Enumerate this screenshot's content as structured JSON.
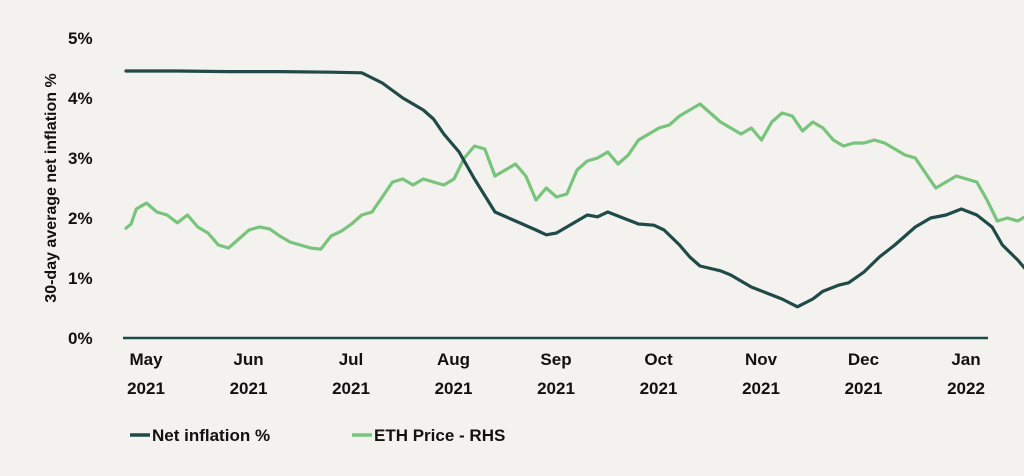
{
  "chart_data": {
    "type": "line",
    "title": "",
    "ylabel": "30-day average net inflation %",
    "xlabel": "",
    "ylim": [
      0,
      5
    ],
    "y_ticks": [
      "0%",
      "1%",
      "2%",
      "3%",
      "4%",
      "5%"
    ],
    "x_range": [
      0,
      8.6
    ],
    "x_ticks": [
      {
        "x": 0,
        "month": "May",
        "year": "2021"
      },
      {
        "x": 1,
        "month": "Jun",
        "year": "2021"
      },
      {
        "x": 2,
        "month": "Jul",
        "year": "2021"
      },
      {
        "x": 3,
        "month": "Aug",
        "year": "2021"
      },
      {
        "x": 4,
        "month": "Sep",
        "year": "2021"
      },
      {
        "x": 5,
        "month": "Oct",
        "year": "2021"
      },
      {
        "x": 6,
        "month": "Nov",
        "year": "2021"
      },
      {
        "x": 7,
        "month": "Dec",
        "year": "2021"
      },
      {
        "x": 8,
        "month": "Jan",
        "year": "2022"
      }
    ],
    "series": [
      {
        "name": "Net inflation %",
        "color": "#1f4a48",
        "points": [
          [
            0,
            4.45
          ],
          [
            0.5,
            4.45
          ],
          [
            1,
            4.44
          ],
          [
            1.5,
            4.44
          ],
          [
            2,
            4.43
          ],
          [
            2.3,
            4.42
          ],
          [
            2.5,
            4.25
          ],
          [
            2.7,
            4.0
          ],
          [
            2.9,
            3.8
          ],
          [
            3.0,
            3.65
          ],
          [
            3.1,
            3.4
          ],
          [
            3.25,
            3.1
          ],
          [
            3.4,
            2.65
          ],
          [
            3.6,
            2.1
          ],
          [
            3.8,
            1.95
          ],
          [
            4.0,
            1.8
          ],
          [
            4.1,
            1.72
          ],
          [
            4.2,
            1.75
          ],
          [
            4.35,
            1.9
          ],
          [
            4.5,
            2.05
          ],
          [
            4.6,
            2.02
          ],
          [
            4.7,
            2.1
          ],
          [
            4.85,
            2.0
          ],
          [
            5.0,
            1.9
          ],
          [
            5.15,
            1.88
          ],
          [
            5.25,
            1.8
          ],
          [
            5.4,
            1.55
          ],
          [
            5.5,
            1.35
          ],
          [
            5.6,
            1.2
          ],
          [
            5.8,
            1.12
          ],
          [
            5.9,
            1.05
          ],
          [
            6.0,
            0.95
          ],
          [
            6.1,
            0.85
          ],
          [
            6.25,
            0.75
          ],
          [
            6.4,
            0.65
          ],
          [
            6.55,
            0.52
          ],
          [
            6.7,
            0.65
          ],
          [
            6.8,
            0.78
          ],
          [
            6.95,
            0.88
          ],
          [
            7.05,
            0.92
          ],
          [
            7.2,
            1.1
          ],
          [
            7.35,
            1.35
          ],
          [
            7.5,
            1.55
          ],
          [
            7.7,
            1.85
          ],
          [
            7.85,
            2.0
          ],
          [
            8.0,
            2.05
          ],
          [
            8.15,
            2.15
          ],
          [
            8.3,
            2.05
          ],
          [
            8.45,
            1.85
          ],
          [
            8.55,
            1.55
          ],
          [
            8.7,
            1.3
          ],
          [
            8.85,
            1.0
          ],
          [
            9.0,
            0.75
          ],
          [
            9.1,
            0.6
          ],
          [
            9.2,
            0.58
          ]
        ]
      },
      {
        "name": "ETH Price - RHS",
        "color": "#78c47c",
        "points": [
          [
            0,
            1.83
          ],
          [
            0.05,
            1.9
          ],
          [
            0.1,
            2.15
          ],
          [
            0.2,
            2.25
          ],
          [
            0.3,
            2.1
          ],
          [
            0.4,
            2.05
          ],
          [
            0.5,
            1.92
          ],
          [
            0.6,
            2.05
          ],
          [
            0.7,
            1.85
          ],
          [
            0.8,
            1.75
          ],
          [
            0.9,
            1.55
          ],
          [
            1.0,
            1.5
          ],
          [
            1.1,
            1.65
          ],
          [
            1.2,
            1.8
          ],
          [
            1.3,
            1.85
          ],
          [
            1.4,
            1.82
          ],
          [
            1.5,
            1.7
          ],
          [
            1.6,
            1.6
          ],
          [
            1.7,
            1.55
          ],
          [
            1.8,
            1.5
          ],
          [
            1.9,
            1.48
          ],
          [
            2.0,
            1.7
          ],
          [
            2.1,
            1.78
          ],
          [
            2.2,
            1.9
          ],
          [
            2.3,
            2.05
          ],
          [
            2.4,
            2.1
          ],
          [
            2.5,
            2.35
          ],
          [
            2.6,
            2.6
          ],
          [
            2.7,
            2.65
          ],
          [
            2.8,
            2.55
          ],
          [
            2.9,
            2.65
          ],
          [
            3.0,
            2.6
          ],
          [
            3.1,
            2.55
          ],
          [
            3.2,
            2.65
          ],
          [
            3.3,
            3.0
          ],
          [
            3.4,
            3.2
          ],
          [
            3.5,
            3.15
          ],
          [
            3.6,
            2.7
          ],
          [
            3.7,
            2.8
          ],
          [
            3.8,
            2.9
          ],
          [
            3.9,
            2.7
          ],
          [
            4.0,
            2.3
          ],
          [
            4.1,
            2.5
          ],
          [
            4.2,
            2.35
          ],
          [
            4.3,
            2.4
          ],
          [
            4.4,
            2.8
          ],
          [
            4.5,
            2.95
          ],
          [
            4.6,
            3.0
          ],
          [
            4.7,
            3.1
          ],
          [
            4.8,
            2.9
          ],
          [
            4.9,
            3.05
          ],
          [
            5.0,
            3.3
          ],
          [
            5.1,
            3.4
          ],
          [
            5.2,
            3.5
          ],
          [
            5.3,
            3.55
          ],
          [
            5.4,
            3.7
          ],
          [
            5.5,
            3.8
          ],
          [
            5.6,
            3.9
          ],
          [
            5.7,
            3.75
          ],
          [
            5.8,
            3.6
          ],
          [
            5.9,
            3.5
          ],
          [
            6.0,
            3.4
          ],
          [
            6.1,
            3.5
          ],
          [
            6.2,
            3.3
          ],
          [
            6.3,
            3.6
          ],
          [
            6.4,
            3.75
          ],
          [
            6.5,
            3.7
          ],
          [
            6.6,
            3.45
          ],
          [
            6.7,
            3.6
          ],
          [
            6.8,
            3.5
          ],
          [
            6.9,
            3.3
          ],
          [
            7.0,
            3.2
          ],
          [
            7.1,
            3.25
          ],
          [
            7.2,
            3.25
          ],
          [
            7.3,
            3.3
          ],
          [
            7.4,
            3.25
          ],
          [
            7.5,
            3.15
          ],
          [
            7.6,
            3.05
          ],
          [
            7.7,
            3.0
          ],
          [
            7.8,
            2.75
          ],
          [
            7.9,
            2.5
          ],
          [
            8.0,
            2.6
          ],
          [
            8.1,
            2.7
          ],
          [
            8.2,
            2.65
          ],
          [
            8.3,
            2.6
          ],
          [
            8.4,
            2.3
          ],
          [
            8.5,
            1.95
          ],
          [
            8.6,
            2.0
          ],
          [
            8.7,
            1.95
          ],
          [
            8.8,
            2.05
          ],
          [
            8.9,
            2.05
          ]
        ]
      }
    ],
    "legend": [
      {
        "label": "Net inflation %",
        "color": "#1f4a48"
      },
      {
        "label": "ETH Price - RHS",
        "color": "#78c47c"
      }
    ]
  }
}
